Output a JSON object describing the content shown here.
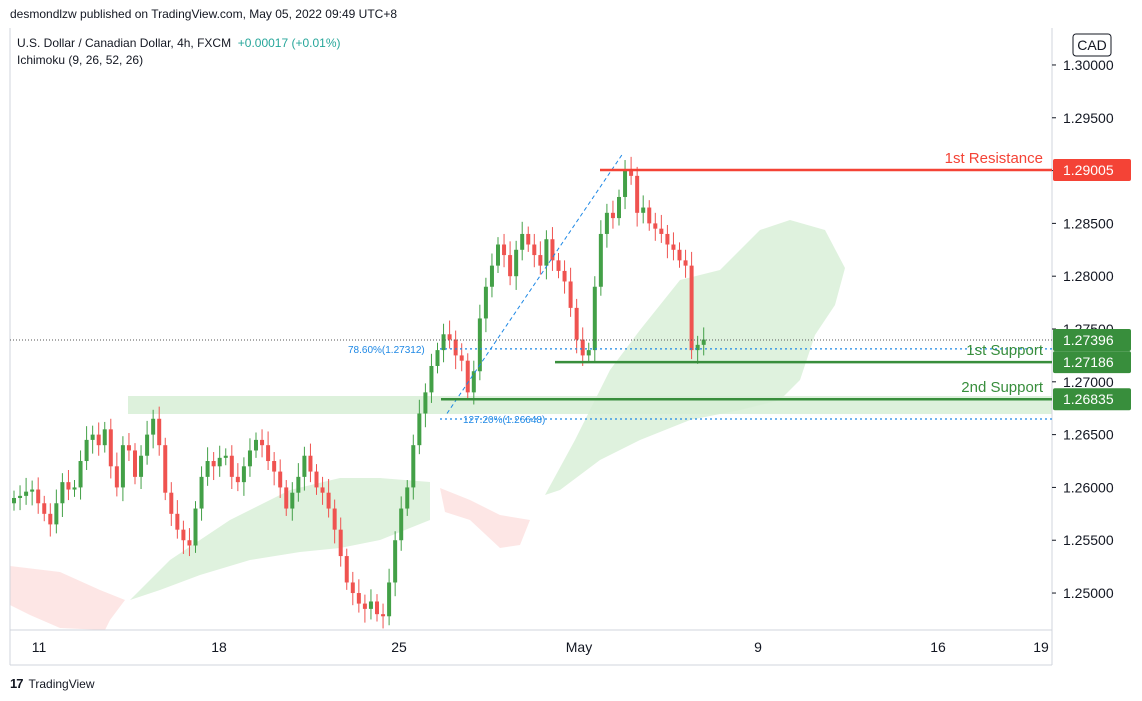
{
  "header": {
    "text": "desmondlzw published on TradingView.com, May 05, 2022 09:49 UTC+8"
  },
  "legend": {
    "symbol": "U.S. Dollar / Canadian Dollar, 4h, FXCM",
    "change": "+0.00017 (+0.01%)",
    "indicator": "Ichimoku (9, 26, 52, 26)"
  },
  "footer": {
    "brand": "TradingView"
  },
  "colors": {
    "up": "#43a047",
    "down": "#ef5350",
    "resistance": "#f44336",
    "support": "#388e3c",
    "fib": "#1e88e5",
    "cloud_green": "#d7efd6",
    "cloud_red": "#fde3e2"
  },
  "chart_data": {
    "type": "candlestick",
    "currency": "CAD",
    "y_ticks": [
      "1.25000",
      "1.25500",
      "1.26000",
      "1.26500",
      "1.27000",
      "1.27500",
      "1.28000",
      "1.28500",
      "1.29000",
      "1.29500",
      "1.30000"
    ],
    "x_ticks": [
      "11",
      "18",
      "25",
      "May",
      "9",
      "16",
      "19"
    ],
    "ylim": [
      1.2465,
      1.3035
    ],
    "levels": [
      {
        "name": "1st Resistance",
        "value": 1.29005,
        "label": "1.29005",
        "color": "#f44336"
      },
      {
        "name": "1st Support",
        "value": 1.27186,
        "label": "1.27186",
        "color": "#388e3c"
      },
      {
        "name": "2nd Support",
        "value": 1.26835,
        "label": "1.26835",
        "color": "#388e3c"
      }
    ],
    "current_price": {
      "value": 1.27396,
      "label": "1.27396"
    },
    "fib_levels": [
      {
        "label": "78.60%(1.27312)",
        "value": 1.27312
      },
      {
        "label": "127.20%(1.26648)",
        "value": 1.26648
      }
    ],
    "candles_close": [
      1.259,
      1.2592,
      1.2596,
      1.2598,
      1.2585,
      1.2575,
      1.2565,
      1.2585,
      1.2605,
      1.2598,
      1.26,
      1.2625,
      1.2645,
      1.265,
      1.264,
      1.2655,
      1.262,
      1.26,
      1.264,
      1.2635,
      1.261,
      1.263,
      1.265,
      1.2665,
      1.264,
      1.2595,
      1.2575,
      1.256,
      1.255,
      1.2545,
      1.258,
      1.261,
      1.2625,
      1.262,
      1.2628,
      1.263,
      1.261,
      1.2605,
      1.262,
      1.2635,
      1.2645,
      1.264,
      1.2625,
      1.2615,
      1.26,
      1.258,
      1.2595,
      1.261,
      1.263,
      1.2615,
      1.26,
      1.2595,
      1.258,
      1.256,
      1.2535,
      1.251,
      1.25,
      1.249,
      1.2485,
      1.2492,
      1.248,
      1.2478,
      1.251,
      1.255,
      1.258,
      1.26,
      1.264,
      1.267,
      1.269,
      1.2715,
      1.273,
      1.2745,
      1.274,
      1.2725,
      1.272,
      1.269,
      1.271,
      1.276,
      1.279,
      1.281,
      1.283,
      1.282,
      1.28,
      1.2825,
      1.284,
      1.283,
      1.282,
      1.281,
      1.2835,
      1.2815,
      1.2805,
      1.2795,
      1.277,
      1.274,
      1.2725,
      1.273,
      1.279,
      1.284,
      1.286,
      1.2855,
      1.2875,
      1.29,
      1.2895,
      1.286,
      1.2865,
      1.285,
      1.2845,
      1.284,
      1.283,
      1.2825,
      1.2815,
      1.281,
      1.273,
      1.2735,
      1.274
    ]
  }
}
